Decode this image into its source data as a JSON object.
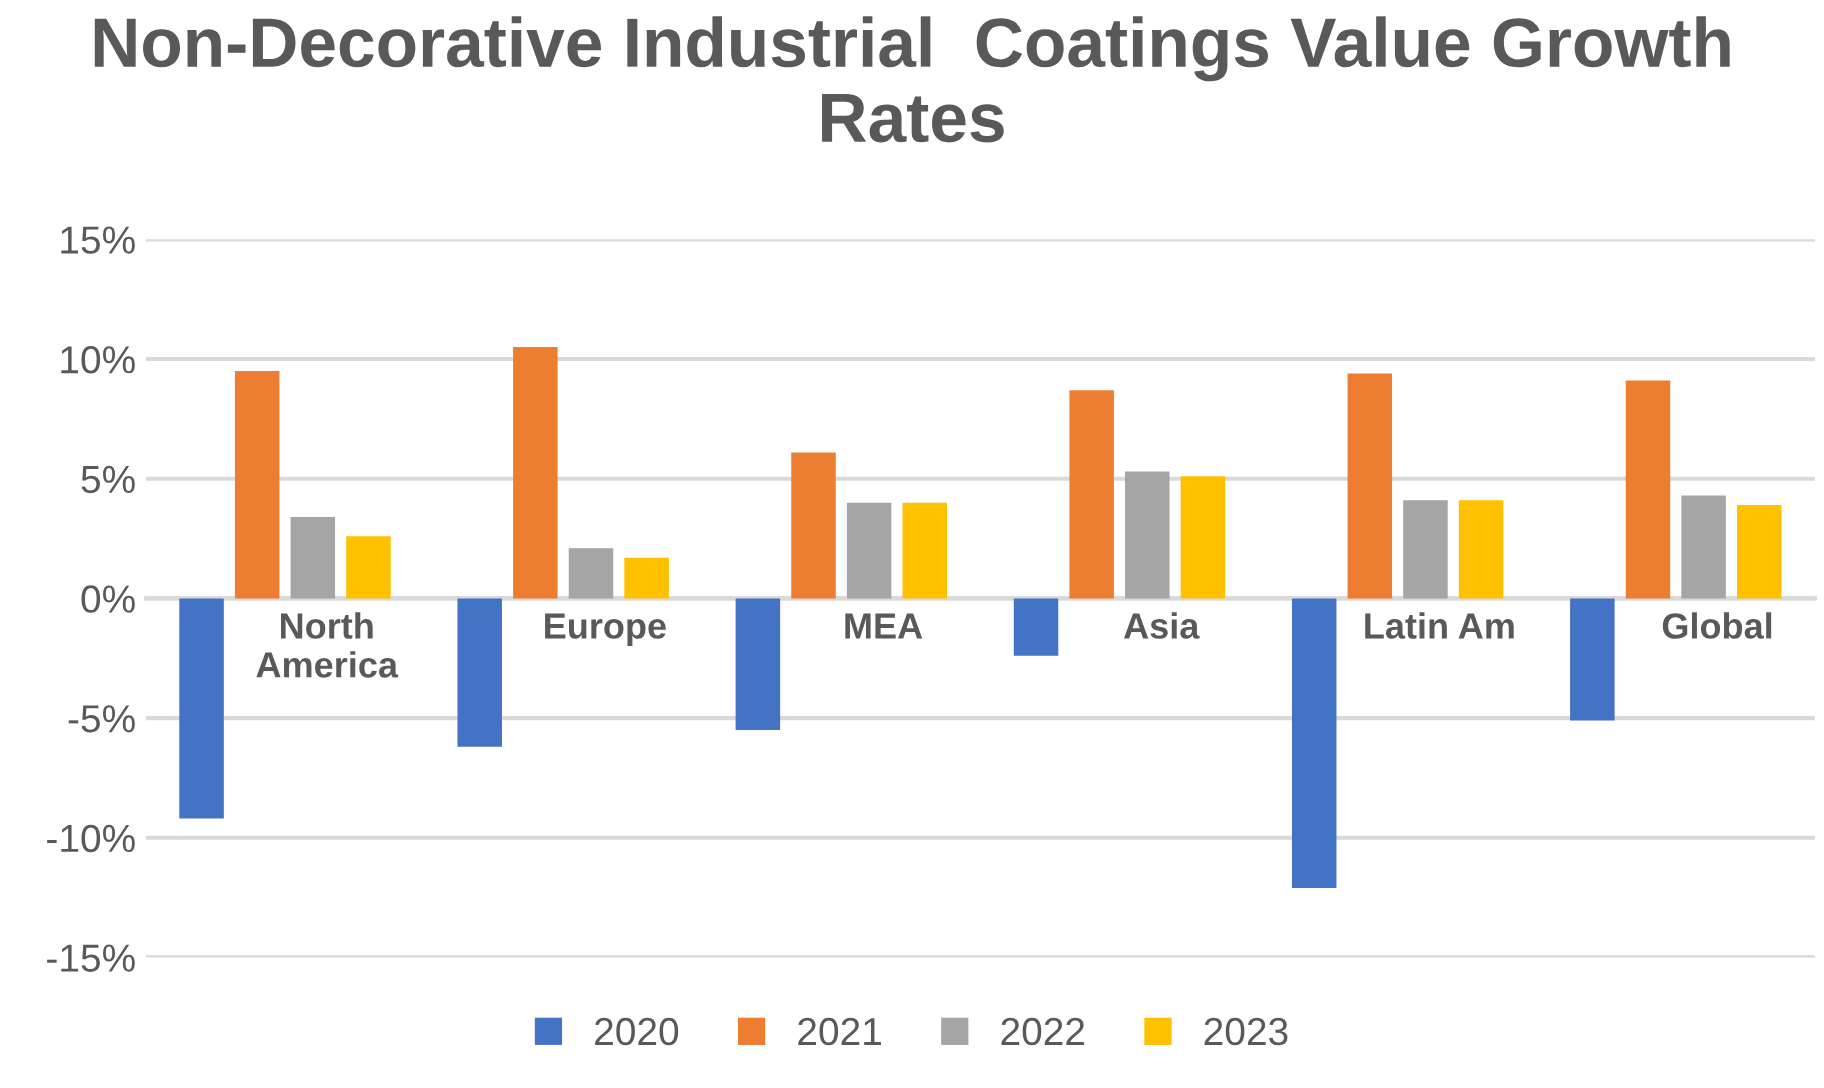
{
  "chart_data": {
    "type": "bar",
    "title": "Non-Decorative Industrial  Coatings Value Growth Rates",
    "categories": [
      "North America",
      "Europe",
      "MEA",
      "Asia",
      "Latin Am",
      "Global"
    ],
    "series": [
      {
        "name": "2020",
        "color": "#4472c4",
        "values": [
          -9.2,
          -6.2,
          -5.5,
          -2.4,
          -12.1,
          -5.1
        ]
      },
      {
        "name": "2021",
        "color": "#ed7d31",
        "values": [
          9.5,
          10.5,
          6.1,
          8.7,
          9.4,
          9.1
        ]
      },
      {
        "name": "2022",
        "color": "#a5a5a5",
        "values": [
          3.4,
          2.1,
          4.0,
          5.3,
          4.1,
          4.3
        ]
      },
      {
        "name": "2023",
        "color": "#ffc000",
        "values": [
          2.6,
          1.7,
          4.0,
          5.1,
          4.1,
          3.9
        ]
      }
    ],
    "ylim": [
      -15,
      15
    ],
    "yticks": [
      {
        "value": -15,
        "label": "-15%"
      },
      {
        "value": -10,
        "label": "-10%"
      },
      {
        "value": -5,
        "label": "-5%"
      },
      {
        "value": 0,
        "label": "0%"
      },
      {
        "value": 5,
        "label": "5%"
      },
      {
        "value": 10,
        "label": "10%"
      },
      {
        "value": 15,
        "label": "15%"
      }
    ],
    "grid": "y",
    "legend": "bottom"
  }
}
